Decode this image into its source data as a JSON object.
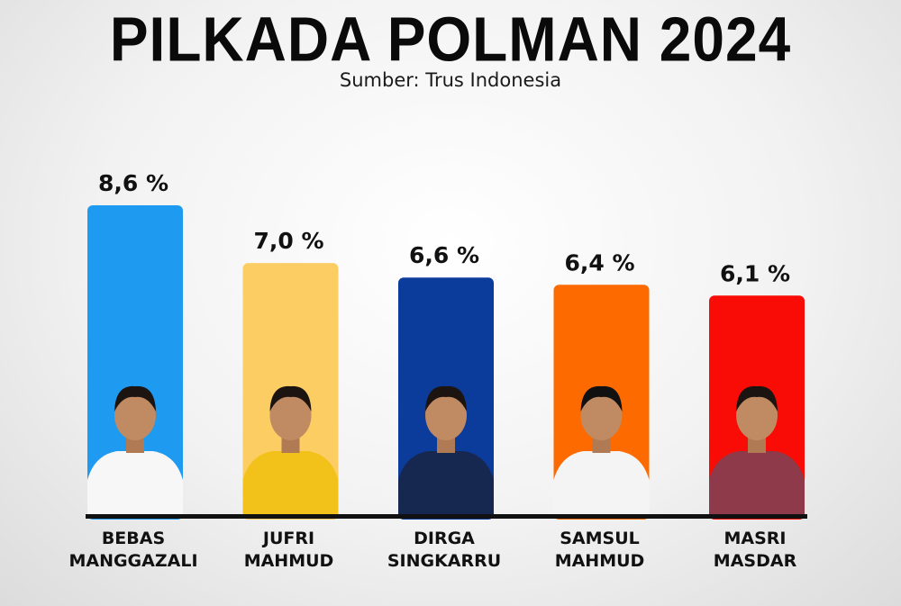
{
  "header": {
    "title": "PILKADA POLMAN 2024",
    "subtitle": "Sumber: Trus Indonesia"
  },
  "chart_data": {
    "type": "bar",
    "title": "PILKADA POLMAN 2024",
    "subtitle": "Sumber: Trus Indonesia",
    "categories": [
      [
        "BEBAS",
        "MANGGAZALI"
      ],
      [
        "JUFRI",
        "MAHMUD"
      ],
      [
        "DIRGA",
        "SINGKARRU"
      ],
      [
        "SAMSUL",
        "MAHMUD"
      ],
      [
        "MASRI",
        "MASDAR"
      ]
    ],
    "values": [
      8.6,
      7.0,
      6.6,
      6.4,
      6.1
    ],
    "value_labels": [
      "8,6 %",
      "7,0 %",
      "6,6 %",
      "6,4 %",
      "6,1 %"
    ],
    "colors": [
      "#1e9bf0",
      "#fccd63",
      "#0b3b9b",
      "#fc6a00",
      "#f80c05"
    ],
    "shirt_colors": [
      "#f7f7f7",
      "#f2c21b",
      "#16284f",
      "#f4f4f4",
      "#8e3a4a"
    ],
    "icons": [
      "person-photo",
      "person-photo",
      "person-photo",
      "person-photo",
      "person-photo"
    ],
    "xlabel": "",
    "ylabel": "",
    "grid": false,
    "legend": "none"
  }
}
